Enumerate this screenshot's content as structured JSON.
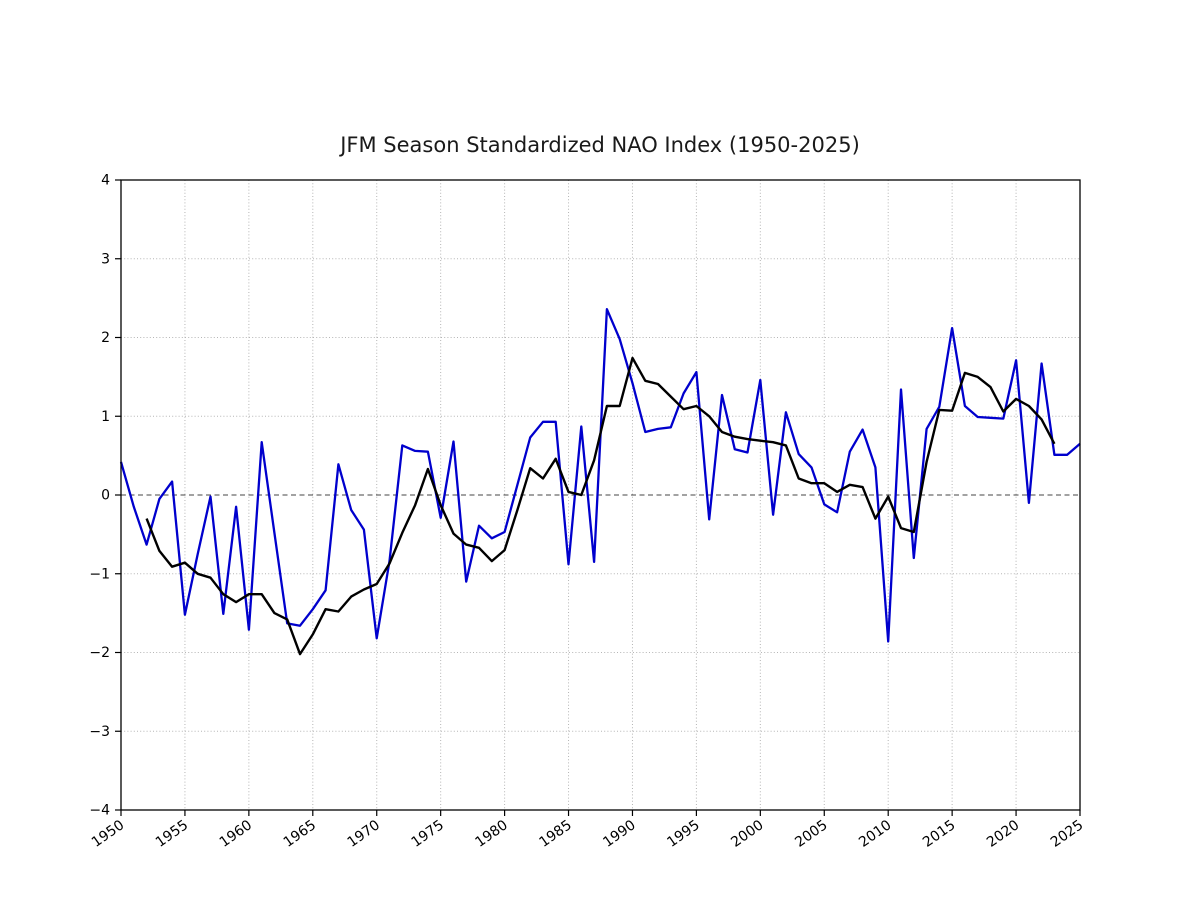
{
  "figure": {
    "background": "#ffffff"
  },
  "chart_data": {
    "type": "line",
    "title": "JFM Season Standardized NAO Index (1950-2025)",
    "xlabel": "",
    "ylabel": "",
    "xlim": [
      1950,
      2025
    ],
    "ylim": [
      -4,
      4
    ],
    "grid": true,
    "grid_style": "dotted",
    "legend": "none",
    "zero_line": {
      "value": 0,
      "style": "dashed",
      "color": "#444444"
    },
    "xticks": [
      1950,
      1955,
      1960,
      1965,
      1970,
      1975,
      1980,
      1985,
      1990,
      1995,
      2000,
      2005,
      2010,
      2015,
      2020,
      2025
    ],
    "xtick_labels": [
      "1950",
      "1955",
      "1960",
      "1965",
      "1970",
      "1975",
      "1980",
      "1985",
      "1990",
      "1995",
      "2000",
      "2005",
      "2010",
      "2015",
      "2020",
      "2025"
    ],
    "yticks": [
      4,
      3,
      2,
      1,
      0,
      -1,
      -2,
      -3,
      -4
    ],
    "ytick_labels": [
      "4",
      "3",
      "2",
      "1",
      "0",
      "−1",
      "−2",
      "−3",
      "−4"
    ],
    "series": [
      {
        "name": "blue-line-annual-index",
        "color": "#0000cd",
        "width": 2.3,
        "start_year": 1950,
        "values": [
          0.42,
          -0.15,
          -0.63,
          -0.05,
          0.17,
          -1.52,
          -0.75,
          -0.02,
          -1.51,
          -0.15,
          -1.71,
          0.67,
          -0.48,
          -1.63,
          -1.66,
          -1.45,
          -1.21,
          0.39,
          -0.19,
          -0.44,
          -1.82,
          -0.84,
          0.63,
          0.56,
          0.55,
          -0.29,
          0.68,
          -1.1,
          -0.39,
          -0.55,
          -0.47,
          0.13,
          0.73,
          0.93,
          0.93,
          -0.88,
          0.87,
          -0.85,
          2.36,
          1.98,
          1.42,
          0.8,
          0.84,
          0.86,
          1.29,
          1.56,
          -0.31,
          1.27,
          0.58,
          0.54,
          1.46,
          -0.25,
          1.05,
          0.52,
          0.35,
          -0.12,
          -0.22,
          0.55,
          0.83,
          0.35,
          -1.86,
          1.34,
          -0.8,
          0.84,
          1.12,
          2.12,
          1.13,
          0.99,
          0.98,
          0.97,
          1.71,
          -0.1,
          1.67,
          0.51,
          0.51,
          0.65
        ]
      },
      {
        "name": "black-line-smoothed-index",
        "color": "#000000",
        "width": 2.4,
        "start_year": 1952,
        "values": [
          -0.3,
          -0.71,
          -0.91,
          -0.86,
          -1.0,
          -1.05,
          -1.26,
          -1.36,
          -1.26,
          -1.26,
          -1.5,
          -1.58,
          -2.02,
          -1.77,
          -1.45,
          -1.48,
          -1.29,
          -1.2,
          -1.13,
          -0.87,
          -0.48,
          -0.13,
          0.33,
          -0.13,
          -0.49,
          -0.63,
          -0.67,
          -0.84,
          -0.7,
          -0.19,
          0.34,
          0.21,
          0.46,
          0.04,
          0.0,
          0.44,
          1.13,
          1.13,
          1.74,
          1.45,
          1.41,
          1.25,
          1.09,
          1.13,
          1.0,
          0.8,
          0.74,
          0.71,
          0.69,
          0.67,
          0.63,
          0.21,
          0.15,
          0.15,
          0.04,
          0.13,
          0.1,
          -0.3,
          -0.02,
          -0.42,
          -0.47,
          0.42,
          1.08,
          1.07,
          1.55,
          1.5,
          1.37,
          1.06,
          1.22,
          1.13,
          0.96,
          0.65
        ]
      }
    ]
  }
}
